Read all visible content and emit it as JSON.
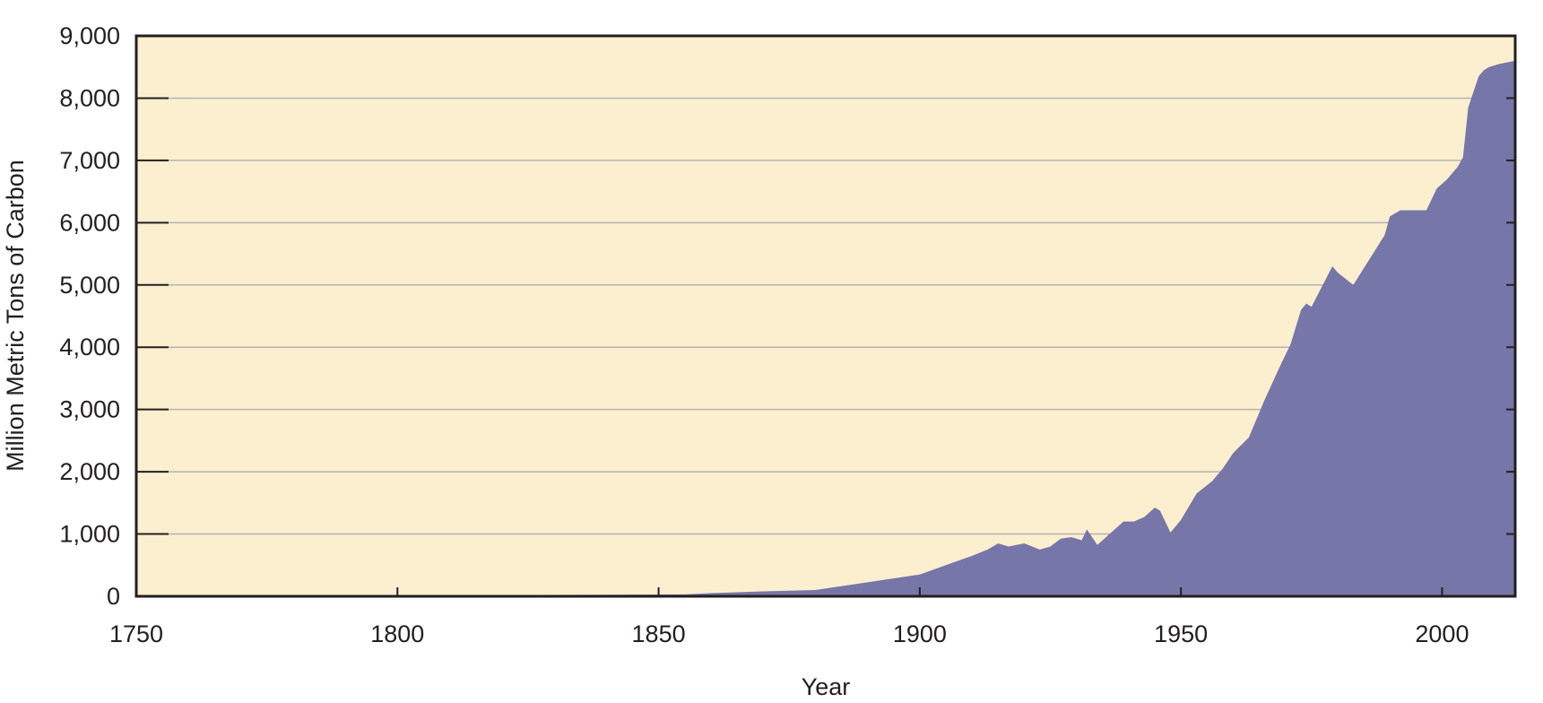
{
  "chart_data": {
    "type": "area",
    "title": "",
    "xlabel": "Year",
    "ylabel": "Million Metric Tons of Carbon",
    "xlim": [
      1750,
      2014
    ],
    "ylim": [
      0,
      9000
    ],
    "x_ticks": [
      1750,
      1800,
      1850,
      1900,
      1950,
      2000
    ],
    "x_tick_labels": [
      "1750",
      "1800",
      "1850",
      "1900",
      "1950",
      "2000"
    ],
    "y_ticks": [
      0,
      1000,
      2000,
      3000,
      4000,
      5000,
      6000,
      7000,
      8000,
      9000
    ],
    "y_tick_labels": [
      "0",
      "1,000",
      "2,000",
      "3,000",
      "4,000",
      "5,000",
      "6,000",
      "7,000",
      "8,000",
      "9,000"
    ],
    "grid": "horizontal",
    "legend": "none",
    "colors": {
      "fill": "#7676a8",
      "plot_background": "#fcefd0",
      "gridline": "#b3b3b3",
      "axis": "#231f20"
    },
    "series": [
      {
        "x": [
          1751,
          1760,
          1780,
          1800,
          1820,
          1840,
          1855,
          1860,
          1870,
          1880,
          1890,
          1900,
          1905,
          1910,
          1913,
          1915,
          1917,
          1920,
          1923,
          1925,
          1927,
          1929,
          1931,
          1932,
          1934,
          1936,
          1939,
          1941,
          1943,
          1945,
          1946,
          1948,
          1950,
          1953,
          1956,
          1958,
          1960,
          1963,
          1966,
          1969,
          1971,
          1973,
          1974,
          1975,
          1979,
          1980,
          1983,
          1986,
          1989,
          1990,
          1992,
          1994,
          1997,
          1999,
          2001,
          2003,
          2004,
          2005,
          2007,
          2008,
          2009,
          2011,
          2014
        ],
        "values": [
          3,
          5,
          10,
          15,
          20,
          25,
          30,
          50,
          80,
          100,
          225,
          350,
          500,
          650,
          750,
          850,
          800,
          850,
          750,
          800,
          925,
          950,
          900,
          1075,
          825,
          975,
          1200,
          1200,
          1275,
          1425,
          1375,
          1025,
          1225,
          1650,
          1850,
          2050,
          2300,
          2550,
          3150,
          3700,
          4050,
          4600,
          4700,
          4650,
          5300,
          5200,
          5000,
          5400,
          5800,
          6100,
          6200,
          6200,
          6200,
          6550,
          6700,
          6900,
          7050,
          7850,
          8350,
          8450,
          8500,
          8550,
          8600
        ]
      }
    ]
  }
}
